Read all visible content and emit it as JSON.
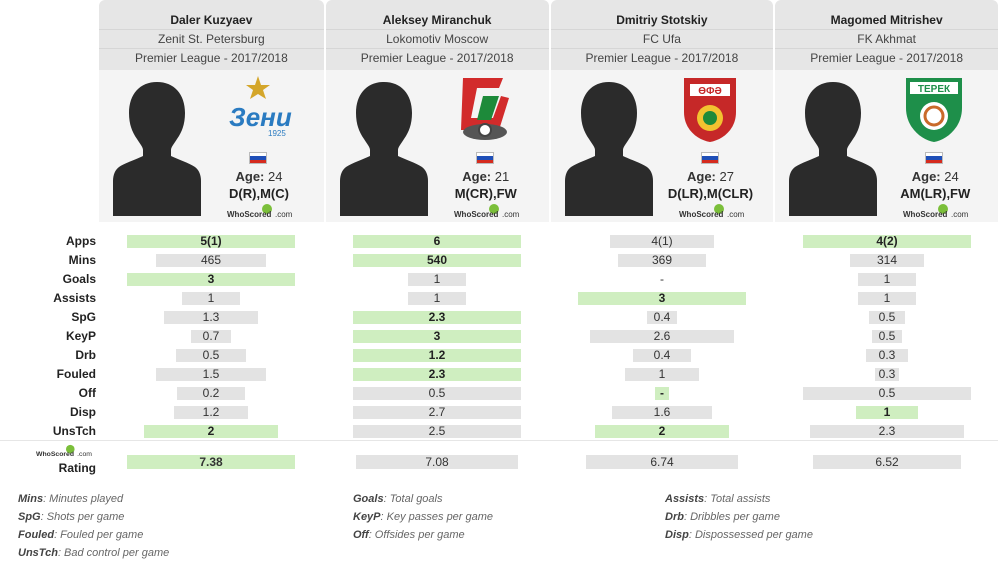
{
  "players": [
    {
      "name": "Daler Kuzyaev",
      "team": "Zenit St. Petersburg",
      "league": "Premier League - 2017/2018",
      "age_label": "Age:",
      "age": "24",
      "positions": "D(R),M(C)",
      "logo": "zenit-logo-icon",
      "flag": "russia-flag-icon"
    },
    {
      "name": "Aleksey Miranchuk",
      "team": "Lokomotiv Moscow",
      "league": "Premier League - 2017/2018",
      "age_label": "Age:",
      "age": "21",
      "positions": "M(CR),FW",
      "logo": "lokomotiv-logo-icon",
      "flag": "russia-flag-icon"
    },
    {
      "name": "Dmitriy Stotskiy",
      "team": "FC Ufa",
      "league": "Premier League - 2017/2018",
      "age_label": "Age:",
      "age": "27",
      "positions": "D(LR),M(CLR)",
      "logo": "ufa-logo-icon",
      "flag": "russia-flag-icon"
    },
    {
      "name": "Magomed Mitrishev",
      "team": "FK Akhmat",
      "league": "Premier League - 2017/2018",
      "age_label": "Age:",
      "age": "24",
      "positions": "AM(LR),FW",
      "logo": "akhmat-logo-icon",
      "flag": "russia-flag-icon"
    }
  ],
  "watermark": {
    "prefix": "WhoScored",
    "suffix": ".com"
  },
  "colors": {
    "win": "#cfeec0",
    "neutral": "#e3e3e3",
    "header": "#e6e6e6",
    "card": "#f4f4f4"
  },
  "stats": [
    {
      "label": "Apps",
      "values": [
        "5(1)",
        "6",
        "4(1)",
        "4(2)"
      ],
      "fill": [
        1.0,
        1.0,
        0.62,
        1.0
      ],
      "win": [
        true,
        true,
        false,
        true
      ]
    },
    {
      "label": "Mins",
      "values": [
        "465",
        "540",
        "369",
        "314"
      ],
      "fill": [
        0.66,
        1.0,
        0.52,
        0.44
      ],
      "win": [
        false,
        true,
        false,
        false
      ]
    },
    {
      "label": "Goals",
      "values": [
        "3",
        "1",
        "-",
        "1"
      ],
      "fill": [
        1.0,
        0.34,
        0.0,
        0.34
      ],
      "win": [
        true,
        false,
        false,
        false
      ]
    },
    {
      "label": "Assists",
      "values": [
        "1",
        "1",
        "3",
        "1"
      ],
      "fill": [
        0.34,
        0.34,
        1.0,
        0.34
      ],
      "win": [
        false,
        false,
        true,
        false
      ]
    },
    {
      "label": "SpG",
      "values": [
        "1.3",
        "2.3",
        "0.4",
        "0.5"
      ],
      "fill": [
        0.56,
        1.0,
        0.18,
        0.22
      ],
      "win": [
        false,
        true,
        false,
        false
      ]
    },
    {
      "label": "KeyP",
      "values": [
        "0.7",
        "3",
        "2.6",
        "0.5"
      ],
      "fill": [
        0.24,
        1.0,
        0.86,
        0.18
      ],
      "win": [
        false,
        true,
        false,
        false
      ]
    },
    {
      "label": "Drb",
      "values": [
        "0.5",
        "1.2",
        "0.4",
        "0.3"
      ],
      "fill": [
        0.42,
        1.0,
        0.34,
        0.25
      ],
      "win": [
        false,
        true,
        false,
        false
      ]
    },
    {
      "label": "Fouled",
      "values": [
        "1.5",
        "2.3",
        "1",
        "0.3"
      ],
      "fill": [
        0.66,
        1.0,
        0.44,
        0.14
      ],
      "win": [
        false,
        true,
        false,
        false
      ]
    },
    {
      "label": "Off",
      "values": [
        "0.2",
        "0.5",
        "-",
        "0.5"
      ],
      "fill": [
        0.4,
        1.0,
        0.08,
        1.0
      ],
      "win": [
        false,
        false,
        true,
        false
      ]
    },
    {
      "label": "Disp",
      "values": [
        "1.2",
        "2.7",
        "1.6",
        "1"
      ],
      "fill": [
        0.44,
        1.0,
        0.6,
        0.37
      ],
      "win": [
        false,
        false,
        false,
        true
      ]
    },
    {
      "label": "UnsTch",
      "values": [
        "2",
        "2.5",
        "2",
        "2.3"
      ],
      "fill": [
        0.8,
        1.0,
        0.8,
        0.92
      ],
      "win": [
        true,
        false,
        true,
        false
      ]
    }
  ],
  "rating": {
    "label": "Rating",
    "values": [
      "7.38",
      "7.08",
      "6.74",
      "6.52"
    ],
    "fill": [
      1.0,
      0.96,
      0.91,
      0.88
    ],
    "win": [
      true,
      false,
      false,
      false
    ]
  },
  "legend": [
    [
      {
        "abbr": "Mins",
        "desc": ": Minutes played"
      },
      {
        "abbr": "SpG",
        "desc": ": Shots per game"
      },
      {
        "abbr": "Fouled",
        "desc": ": Fouled per game"
      },
      {
        "abbr": "UnsTch",
        "desc": ": Bad control per game"
      }
    ],
    [
      {
        "abbr": "Goals",
        "desc": ": Total goals"
      },
      {
        "abbr": "KeyP",
        "desc": ": Key passes per game"
      },
      {
        "abbr": "Off",
        "desc": ": Offsides per game"
      }
    ],
    [
      {
        "abbr": "Assists",
        "desc": ": Total assists"
      },
      {
        "abbr": "Drb",
        "desc": ": Dribbles per game"
      },
      {
        "abbr": "Disp",
        "desc": ": Dispossessed per game"
      }
    ]
  ]
}
